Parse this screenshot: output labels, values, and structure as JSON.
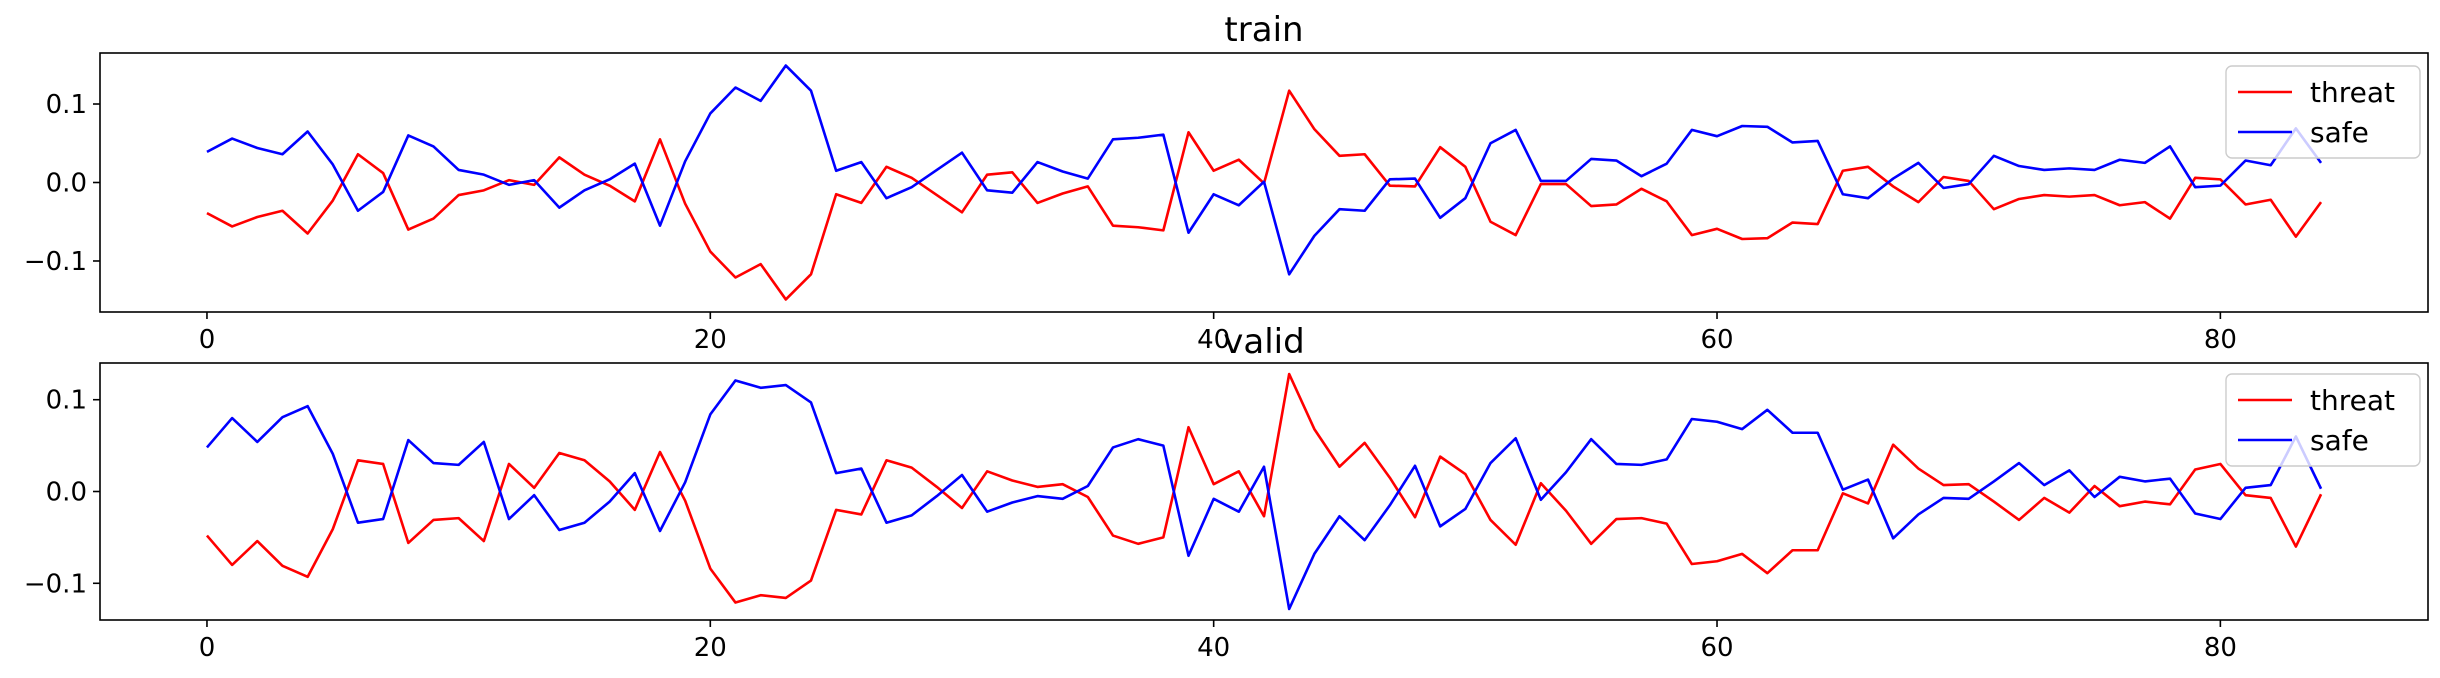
{
  "chart_data": [
    {
      "type": "line",
      "title": "train",
      "xlabel": "",
      "ylabel": "",
      "xlim": [
        -4.25,
        88.25
      ],
      "ylim": [
        -0.165,
        0.165
      ],
      "xticks": [
        0,
        20,
        40,
        60,
        80
      ],
      "yticks": [
        -0.1,
        0.0,
        0.1
      ],
      "xtick_labels": [
        "0",
        "20",
        "40",
        "60",
        "80"
      ],
      "ytick_labels": [
        "−0.1",
        "0.0",
        "0.1"
      ],
      "grid": false,
      "legend_position": "top-right",
      "x": [
        0,
        1,
        2,
        3,
        4,
        5,
        6,
        7,
        8,
        9,
        10,
        11,
        12,
        13,
        14,
        15,
        16,
        17,
        18,
        19,
        20,
        21,
        22,
        23,
        24,
        25,
        26,
        27,
        28,
        29,
        30,
        31,
        32,
        33,
        34,
        35,
        36,
        37,
        38,
        39,
        40,
        41,
        42,
        43,
        44,
        45,
        46,
        47,
        48,
        49,
        50,
        51,
        52,
        53,
        54,
        55,
        56,
        57,
        58,
        59,
        60,
        61,
        62,
        63,
        64,
        65,
        66,
        67,
        68,
        69,
        70,
        71,
        72,
        73,
        74,
        75,
        76,
        77,
        78,
        79,
        80,
        81,
        82,
        83,
        84
      ],
      "series": [
        {
          "name": "threat",
          "color": "#ff0000",
          "values": [
            -0.039,
            -0.056,
            -0.044,
            -0.036,
            -0.065,
            -0.023,
            0.036,
            0.012,
            -0.06,
            -0.046,
            -0.016,
            -0.01,
            0.003,
            -0.003,
            0.032,
            0.01,
            -0.004,
            -0.024,
            0.055,
            -0.027,
            -0.088,
            -0.121,
            -0.104,
            -0.149,
            -0.117,
            -0.015,
            -0.026,
            0.02,
            0.006,
            -0.016,
            -0.038,
            0.01,
            0.013,
            -0.026,
            -0.014,
            -0.005,
            -0.055,
            -0.057,
            -0.061,
            0.064,
            0.015,
            0.029,
            -0.001,
            0.117,
            0.068,
            0.034,
            0.036,
            -0.004,
            -0.005,
            0.045,
            0.02,
            -0.05,
            -0.067,
            -0.002,
            -0.002,
            -0.03,
            -0.028,
            -0.008,
            -0.024,
            -0.067,
            -0.059,
            -0.072,
            -0.071,
            -0.051,
            -0.053,
            0.015,
            0.02,
            -0.005,
            -0.025,
            0.007,
            0.002,
            -0.034,
            -0.021,
            -0.016,
            -0.018,
            -0.016,
            -0.029,
            -0.025,
            -0.046,
            0.006,
            0.004,
            -0.028,
            -0.022,
            -0.069,
            -0.025
          ]
        },
        {
          "name": "safe",
          "color": "#0000ff",
          "values": [
            0.039,
            0.056,
            0.044,
            0.036,
            0.065,
            0.023,
            -0.036,
            -0.012,
            0.06,
            0.046,
            0.016,
            0.01,
            -0.003,
            0.003,
            -0.032,
            -0.01,
            0.004,
            0.024,
            -0.055,
            0.027,
            0.088,
            0.121,
            0.104,
            0.149,
            0.117,
            0.015,
            0.026,
            -0.02,
            -0.006,
            0.016,
            0.038,
            -0.01,
            -0.013,
            0.026,
            0.014,
            0.005,
            0.055,
            0.057,
            0.061,
            -0.064,
            -0.015,
            -0.029,
            0.001,
            -0.117,
            -0.068,
            -0.034,
            -0.036,
            0.004,
            0.005,
            -0.045,
            -0.02,
            0.05,
            0.067,
            0.002,
            0.002,
            0.03,
            0.028,
            0.008,
            0.024,
            0.067,
            0.059,
            0.072,
            0.071,
            0.051,
            0.053,
            -0.015,
            -0.02,
            0.005,
            0.025,
            -0.007,
            -0.002,
            0.034,
            0.021,
            0.016,
            0.018,
            0.016,
            0.029,
            0.025,
            0.046,
            -0.006,
            -0.004,
            0.028,
            0.022,
            0.069,
            0.025
          ]
        }
      ]
    },
    {
      "type": "line",
      "title": "valid",
      "xlabel": "",
      "ylabel": "",
      "xlim": [
        -4.25,
        88.25
      ],
      "ylim": [
        -0.14,
        0.14
      ],
      "xticks": [
        0,
        20,
        40,
        60,
        80
      ],
      "yticks": [
        -0.1,
        0.0,
        0.1
      ],
      "xtick_labels": [
        "0",
        "20",
        "40",
        "60",
        "80"
      ],
      "ytick_labels": [
        "−0.1",
        "0.0",
        "0.1"
      ],
      "grid": false,
      "legend_position": "top-right",
      "x": [
        0,
        1,
        2,
        3,
        4,
        5,
        6,
        7,
        8,
        9,
        10,
        11,
        12,
        13,
        14,
        15,
        16,
        17,
        18,
        19,
        20,
        21,
        22,
        23,
        24,
        25,
        26,
        27,
        28,
        29,
        30,
        31,
        32,
        33,
        34,
        35,
        36,
        37,
        38,
        39,
        40,
        41,
        42,
        43,
        44,
        45,
        46,
        47,
        48,
        49,
        50,
        51,
        52,
        53,
        54,
        55,
        56,
        57,
        58,
        59,
        60,
        61,
        62,
        63,
        64,
        65,
        66,
        67,
        68,
        69,
        70,
        71,
        72,
        73,
        74,
        75,
        76,
        77,
        78,
        79,
        80,
        81,
        82,
        83,
        84
      ],
      "series": [
        {
          "name": "threat",
          "color": "#ff0000",
          "values": [
            -0.048,
            -0.08,
            -0.054,
            -0.081,
            -0.093,
            -0.041,
            0.034,
            0.03,
            -0.056,
            -0.031,
            -0.029,
            -0.054,
            0.03,
            0.004,
            0.042,
            0.034,
            0.011,
            -0.02,
            0.043,
            -0.01,
            -0.084,
            -0.121,
            -0.113,
            -0.116,
            -0.097,
            -0.02,
            -0.025,
            0.034,
            0.026,
            0.005,
            -0.018,
            0.022,
            0.012,
            0.005,
            0.008,
            -0.006,
            -0.048,
            -0.057,
            -0.05,
            0.07,
            0.008,
            0.022,
            -0.027,
            0.128,
            0.068,
            0.027,
            0.053,
            0.015,
            -0.028,
            0.038,
            0.019,
            -0.031,
            -0.058,
            0.009,
            -0.021,
            -0.057,
            -0.03,
            -0.029,
            -0.035,
            -0.079,
            -0.076,
            -0.068,
            -0.089,
            -0.064,
            -0.064,
            -0.002,
            -0.013,
            0.051,
            0.025,
            0.007,
            0.008,
            -0.011,
            -0.031,
            -0.007,
            -0.023,
            0.006,
            -0.016,
            -0.011,
            -0.014,
            0.024,
            0.03,
            -0.004,
            -0.007,
            -0.06,
            -0.003
          ]
        },
        {
          "name": "safe",
          "color": "#0000ff",
          "values": [
            0.048,
            0.08,
            0.054,
            0.081,
            0.093,
            0.041,
            -0.034,
            -0.03,
            0.056,
            0.031,
            0.029,
            0.054,
            -0.03,
            -0.004,
            -0.042,
            -0.034,
            -0.011,
            0.02,
            -0.043,
            0.01,
            0.084,
            0.121,
            0.113,
            0.116,
            0.097,
            0.02,
            0.025,
            -0.034,
            -0.026,
            -0.005,
            0.018,
            -0.022,
            -0.012,
            -0.005,
            -0.008,
            0.006,
            0.048,
            0.057,
            0.05,
            -0.07,
            -0.008,
            -0.022,
            0.027,
            -0.128,
            -0.068,
            -0.027,
            -0.053,
            -0.015,
            0.028,
            -0.038,
            -0.019,
            0.031,
            0.058,
            -0.009,
            0.021,
            0.057,
            0.03,
            0.029,
            0.035,
            0.079,
            0.076,
            0.068,
            0.089,
            0.064,
            0.064,
            0.002,
            0.013,
            -0.051,
            -0.025,
            -0.007,
            -0.008,
            0.011,
            0.031,
            0.007,
            0.023,
            -0.006,
            0.016,
            0.011,
            0.014,
            -0.024,
            -0.03,
            0.004,
            0.007,
            0.06,
            0.003
          ]
        }
      ]
    }
  ]
}
